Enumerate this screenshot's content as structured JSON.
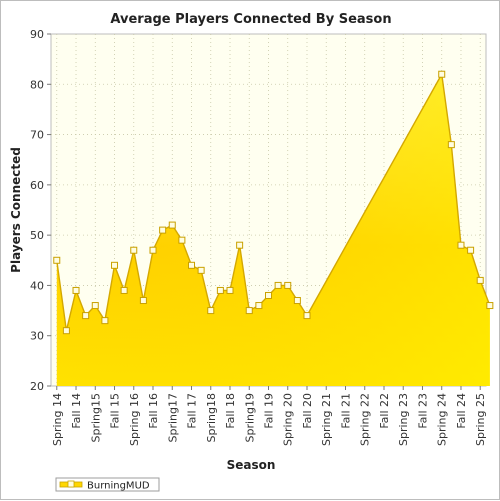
{
  "chart_data": {
    "type": "area",
    "title": "Average Players Connected By Season",
    "xlabel": "Season",
    "ylabel": "Players Connected",
    "ylim": [
      20,
      90
    ],
    "yticks": [
      20,
      30,
      40,
      50,
      60,
      70,
      80,
      90
    ],
    "grid": true,
    "legend_position": "bottom-left",
    "categories": [
      "Spring 14",
      "Fall 14",
      "Spring15",
      "Fall 15",
      "Spring 16",
      "Fall 16",
      "Spring17",
      "Fall 17",
      "Spring18",
      "Fall 18",
      "Spring19",
      "Fall 19",
      "Spring 20",
      "Fall 20",
      "Spring 21",
      "Fall 21",
      "Spring 22",
      "Fall 22",
      "Spring 23",
      "Fall 23",
      "Spring 24",
      "Fall 24",
      "Spring 25"
    ],
    "series": [
      {
        "name": "BurningMUD",
        "color": "#ffd700",
        "points": [
          {
            "x": 0.0,
            "y": 45
          },
          {
            "x": 0.5,
            "y": 31
          },
          {
            "x": 1.0,
            "y": 39
          },
          {
            "x": 1.5,
            "y": 34
          },
          {
            "x": 2.0,
            "y": 36
          },
          {
            "x": 2.5,
            "y": 33
          },
          {
            "x": 3.0,
            "y": 44
          },
          {
            "x": 3.5,
            "y": 39
          },
          {
            "x": 4.0,
            "y": 47
          },
          {
            "x": 4.5,
            "y": 37
          },
          {
            "x": 5.0,
            "y": 47
          },
          {
            "x": 5.5,
            "y": 51
          },
          {
            "x": 6.0,
            "y": 52
          },
          {
            "x": 6.5,
            "y": 49
          },
          {
            "x": 7.0,
            "y": 44
          },
          {
            "x": 7.5,
            "y": 43
          },
          {
            "x": 8.0,
            "y": 35
          },
          {
            "x": 8.5,
            "y": 39
          },
          {
            "x": 9.0,
            "y": 39
          },
          {
            "x": 9.5,
            "y": 48
          },
          {
            "x": 10.0,
            "y": 35
          },
          {
            "x": 10.5,
            "y": 36
          },
          {
            "x": 11.0,
            "y": 38
          },
          {
            "x": 11.5,
            "y": 40
          },
          {
            "x": 12.0,
            "y": 40
          },
          {
            "x": 12.5,
            "y": 37
          },
          {
            "x": 13.0,
            "y": 34
          },
          {
            "x": 20.0,
            "y": 82
          },
          {
            "x": 20.5,
            "y": 68
          },
          {
            "x": 21.0,
            "y": 48
          },
          {
            "x": 21.5,
            "y": 47
          },
          {
            "x": 22.0,
            "y": 41
          },
          {
            "x": 22.5,
            "y": 36
          }
        ]
      }
    ]
  }
}
